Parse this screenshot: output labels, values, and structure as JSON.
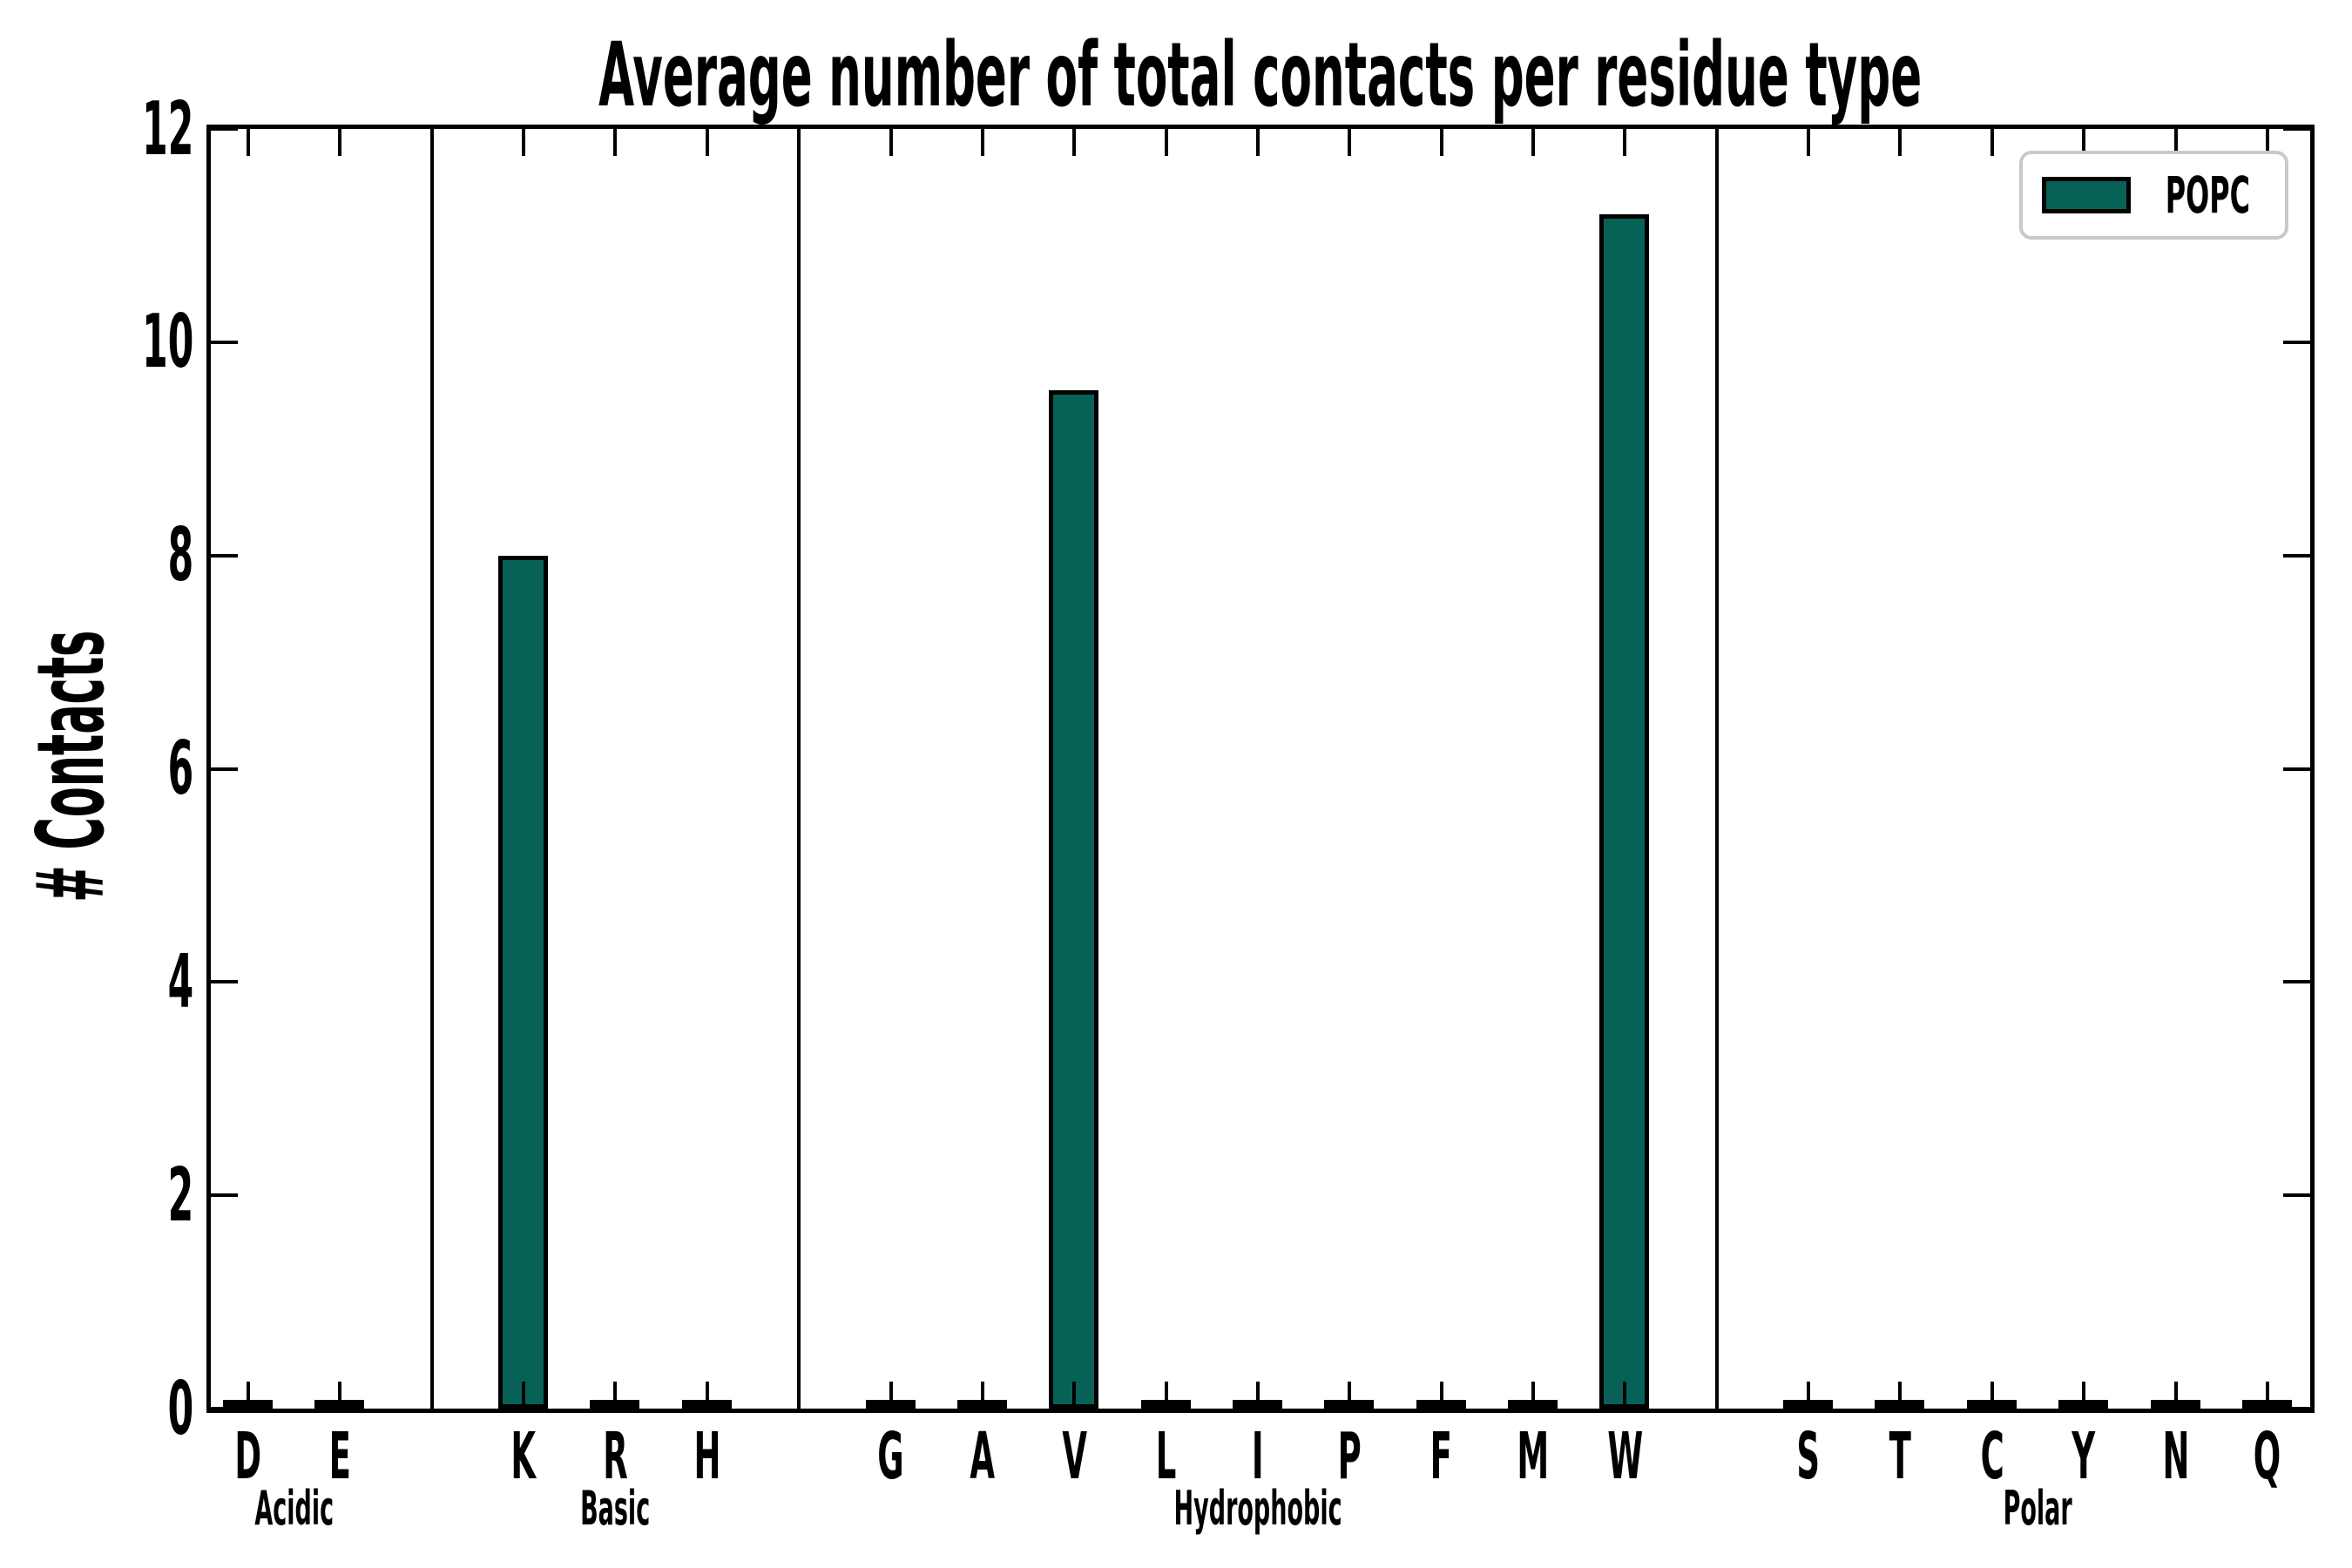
{
  "legend": {
    "label": "POPC",
    "position": "upper right",
    "border_color": "#c9c9c9"
  },
  "chart_data": {
    "type": "bar",
    "title": "Average number of total contacts per residue type",
    "xlabel": "",
    "ylabel": "# Contacts",
    "ylim": [
      0,
      12
    ],
    "yticks": [
      0,
      2,
      4,
      6,
      8,
      10,
      12
    ],
    "grid": false,
    "legend_entries": [
      "POPC"
    ],
    "legend_position": "upper right",
    "bar_color": "#086156",
    "bar_edge_color": "#000000",
    "frame_color": "#000000",
    "background_color": "#ffffff",
    "group_separator_lines": true,
    "groups": [
      {
        "label": "Acidic",
        "categories": [
          "D",
          "E"
        ],
        "values": [
          0.05,
          0.05
        ]
      },
      {
        "label": "Basic",
        "categories": [
          "K",
          "R",
          "H"
        ],
        "values": [
          8.0,
          0.05,
          0.05
        ]
      },
      {
        "label": "Hydrophobic",
        "categories": [
          "G",
          "A",
          "V",
          "L",
          "I",
          "P",
          "F",
          "M",
          "W"
        ],
        "values": [
          0.05,
          0.05,
          9.55,
          0.05,
          0.05,
          0.05,
          0.05,
          0.05,
          11.2
        ]
      },
      {
        "label": "Polar",
        "categories": [
          "S",
          "T",
          "C",
          "Y",
          "N",
          "Q"
        ],
        "values": [
          0.05,
          0.05,
          0.05,
          0.05,
          0.05,
          0.05
        ]
      }
    ]
  }
}
